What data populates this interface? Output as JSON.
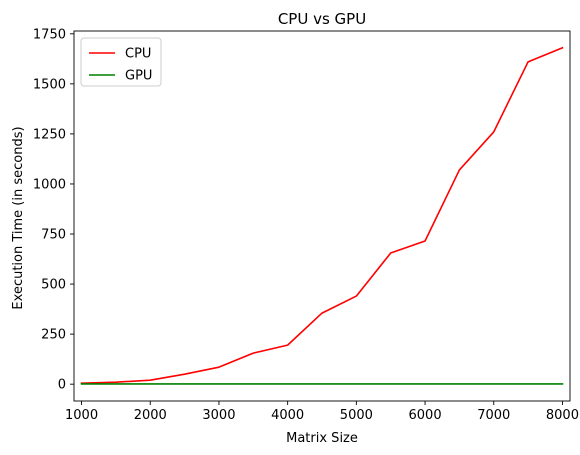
{
  "chart_data": {
    "type": "line",
    "title": "CPU vs GPU",
    "xlabel": "Matrix Size",
    "ylabel": "Execution Time (in seconds)",
    "x": [
      1000,
      1500,
      2000,
      2500,
      3000,
      3500,
      4000,
      4500,
      5000,
      5500,
      6000,
      6500,
      7000,
      7500,
      8000
    ],
    "xlim": [
      890,
      8110
    ],
    "ylim": [
      -84,
      1764
    ],
    "xticks": [
      1000,
      2000,
      3000,
      4000,
      5000,
      6000,
      7000,
      8000
    ],
    "yticks": [
      0,
      250,
      500,
      750,
      1000,
      1250,
      1500,
      1750
    ],
    "grid": false,
    "legend_position": "top-left",
    "series": [
      {
        "name": "CPU",
        "color": "#ff0000",
        "values": [
          5,
          10,
          20,
          50,
          85,
          155,
          195,
          355,
          440,
          655,
          715,
          1070,
          1260,
          1610,
          1680
        ]
      },
      {
        "name": "GPU",
        "color": "#008000",
        "values": [
          1,
          1,
          1,
          1,
          1,
          1,
          1,
          1,
          1,
          1,
          1,
          1,
          1,
          1,
          1
        ]
      }
    ]
  }
}
